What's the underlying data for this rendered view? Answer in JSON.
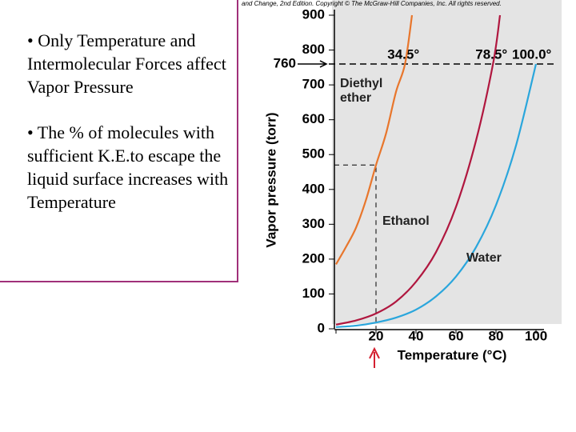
{
  "slide": {
    "bullets": [
      "• Only Temperature and Intermolecular Forces affect Vapor Pressure",
      "• The % of molecules with sufficient K.E.to escape the liquid surface increases with Temperature"
    ]
  },
  "chart_data": {
    "type": "line",
    "credit": "and Change, 2nd Edition. Copyright © The McGraw-Hill Companies, Inc. All rights reserved.",
    "x_label": "Temperature (°C)",
    "y_label": "Vapor pressure (torr)",
    "xlim": [
      0,
      100
    ],
    "xticks": [
      0,
      20,
      40,
      60,
      80,
      100
    ],
    "ylim": [
      0,
      900
    ],
    "yticks": [
      0,
      100,
      200,
      300,
      400,
      500,
      600,
      700,
      800,
      900
    ],
    "hline": 760,
    "annotations": [
      {
        "text": "34.5°",
        "x": 34.5
      },
      {
        "text": "78.5°",
        "x": 78.5
      },
      {
        "text": "100.0°",
        "x": 100
      }
    ],
    "series": [
      {
        "name": "Diethyl ether",
        "color": "#e8762c",
        "x": [
          0,
          5,
          10,
          15,
          20,
          25,
          30,
          34.5,
          38
        ],
        "values": [
          185,
          235,
          290,
          370,
          470,
          560,
          680,
          760,
          900
        ]
      },
      {
        "name": "Ethanol",
        "color": "#b0173f",
        "x": [
          0,
          10,
          20,
          30,
          40,
          50,
          60,
          70,
          78.5,
          82
        ],
        "values": [
          12,
          24,
          44,
          78,
          135,
          220,
          350,
          540,
          760,
          900
        ]
      },
      {
        "name": "Water",
        "color": "#2aa6dc",
        "x": [
          0,
          10,
          20,
          30,
          40,
          50,
          60,
          70,
          80,
          90,
          100
        ],
        "values": [
          5,
          9,
          18,
          32,
          55,
          93,
          150,
          234,
          355,
          526,
          760
        ]
      }
    ]
  }
}
